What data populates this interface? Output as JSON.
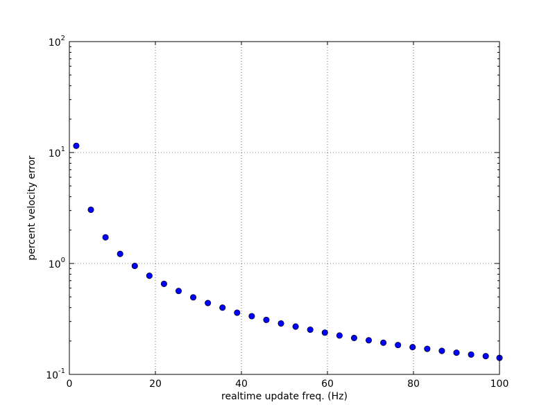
{
  "chart_data": {
    "type": "scatter",
    "title": "",
    "xlabel": "realtime update freq. (Hz)",
    "ylabel": "percent velocity error",
    "xlim": [
      0,
      100
    ],
    "ylim": [
      0.1,
      100
    ],
    "yscale": "log",
    "grid": true,
    "marker_color": "#0000ff",
    "x_ticks": [
      0,
      20,
      40,
      60,
      80,
      100
    ],
    "y_ticks": [
      {
        "value": 0.1,
        "base": "10",
        "exp": "-1"
      },
      {
        "value": 1,
        "base": "10",
        "exp": "0"
      },
      {
        "value": 10,
        "base": "10",
        "exp": "1"
      },
      {
        "value": 100,
        "base": "10",
        "exp": "2"
      }
    ],
    "x": [
      1.6,
      5.0,
      8.4,
      11.8,
      15.2,
      18.6,
      22.0,
      25.4,
      28.8,
      32.2,
      35.6,
      39.0,
      42.4,
      45.8,
      49.2,
      52.6,
      56.0,
      59.4,
      62.8,
      66.2,
      69.6,
      73.0,
      76.4,
      79.8,
      83.2,
      86.6,
      90.0,
      93.4,
      96.8,
      100.0
    ],
    "y": [
      11.5,
      3.05,
      1.72,
      1.22,
      0.95,
      0.775,
      0.655,
      0.565,
      0.495,
      0.44,
      0.4,
      0.36,
      0.335,
      0.31,
      0.288,
      0.27,
      0.253,
      0.238,
      0.224,
      0.213,
      0.203,
      0.193,
      0.184,
      0.176,
      0.17,
      0.163,
      0.157,
      0.151,
      0.146,
      0.141
    ]
  }
}
